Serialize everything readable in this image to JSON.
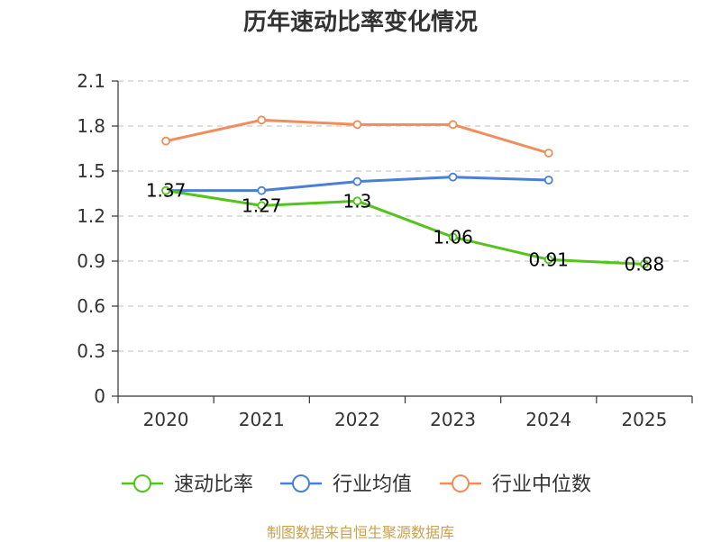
{
  "chart_data": {
    "type": "line",
    "title": "历年速动比率变化情况",
    "xlabel": "",
    "ylabel": "",
    "categories": [
      "2020",
      "2021",
      "2022",
      "2023",
      "2024",
      "2025"
    ],
    "yticks": [
      "0",
      "0.3",
      "0.6",
      "0.9",
      "1.2",
      "1.5",
      "1.8",
      "2.1"
    ],
    "ylim": [
      0,
      2.1
    ],
    "grid": true,
    "legend_position": "bottom",
    "series": [
      {
        "name": "速动比率",
        "color": "#52c41a",
        "values": [
          1.37,
          1.27,
          1.3,
          1.06,
          0.91,
          0.88
        ],
        "labels": [
          "1.37",
          "1.27",
          "1.3",
          "1.06",
          "0.91",
          "0.88"
        ]
      },
      {
        "name": "行业均值",
        "color": "#4a7fd6",
        "values": [
          1.37,
          1.37,
          1.43,
          1.46,
          1.44,
          null
        ]
      },
      {
        "name": "行业中位数",
        "color": "#f28c5a",
        "values": [
          1.7,
          1.84,
          1.81,
          1.81,
          1.62,
          null
        ]
      }
    ]
  },
  "footer": {
    "source": "制图数据来自恒生聚源数据库"
  }
}
